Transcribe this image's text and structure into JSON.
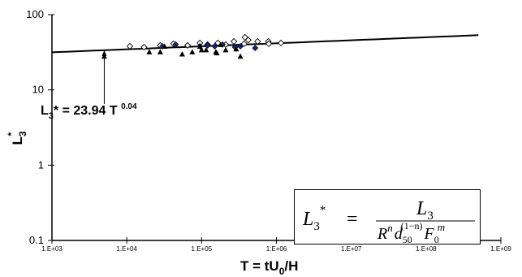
{
  "chart_data": {
    "type": "scatter",
    "title": "",
    "xlabel": {
      "base": "T = tU",
      "sub": "0",
      "tail": "/H"
    },
    "ylabel": {
      "base": "L",
      "sub": "3",
      "sup": "*"
    },
    "xscale": "log",
    "yscale": "log",
    "xlim": [
      1000,
      1000000000
    ],
    "ylim": [
      0.1,
      100
    ],
    "x_tick_labels": [
      "1.E+03",
      "1.E+04",
      "1.E+05",
      "1.E+06",
      "1.E+07",
      "1.E+08",
      "1.E+09"
    ],
    "y_tick_labels": [
      "0.1",
      "1",
      "10",
      "100"
    ],
    "grid": false,
    "legend": "none",
    "series": [
      {
        "marker": "diamond-open",
        "color": "#000000",
        "points": [
          {
            "x": 11000,
            "y": 38
          },
          {
            "x": 17000,
            "y": 37
          },
          {
            "x": 28000,
            "y": 39
          },
          {
            "x": 42000,
            "y": 41
          },
          {
            "x": 65000,
            "y": 39
          },
          {
            "x": 95000,
            "y": 42
          },
          {
            "x": 120000,
            "y": 40
          },
          {
            "x": 165000,
            "y": 42
          },
          {
            "x": 210000,
            "y": 40
          },
          {
            "x": 270000,
            "y": 44
          },
          {
            "x": 370000,
            "y": 41
          },
          {
            "x": 380000,
            "y": 50
          },
          {
            "x": 420000,
            "y": 46
          },
          {
            "x": 560000,
            "y": 44
          },
          {
            "x": 780000,
            "y": 44
          },
          {
            "x": 790000,
            "y": 41
          },
          {
            "x": 1150000,
            "y": 42
          }
        ]
      },
      {
        "marker": "diamond-filled",
        "color": "#1a237e",
        "points": [
          {
            "x": 30000,
            "y": 38
          },
          {
            "x": 45000,
            "y": 40
          },
          {
            "x": 95000,
            "y": 38
          },
          {
            "x": 120000,
            "y": 39
          },
          {
            "x": 150000,
            "y": 38
          },
          {
            "x": 190000,
            "y": 40
          },
          {
            "x": 280000,
            "y": 37
          },
          {
            "x": 330000,
            "y": 38
          },
          {
            "x": 520000,
            "y": 36
          }
        ]
      },
      {
        "marker": "triangle-filled",
        "color": "#000000",
        "points": [
          {
            "x": 5000,
            "y": 28
          },
          {
            "x": 20000,
            "y": 32
          },
          {
            "x": 28000,
            "y": 32
          },
          {
            "x": 32000,
            "y": 38
          },
          {
            "x": 55000,
            "y": 30
          },
          {
            "x": 75000,
            "y": 32
          },
          {
            "x": 95000,
            "y": 38
          },
          {
            "x": 100000,
            "y": 34
          },
          {
            "x": 115000,
            "y": 34
          },
          {
            "x": 155000,
            "y": 32
          },
          {
            "x": 160000,
            "y": 31
          },
          {
            "x": 180000,
            "y": 40
          },
          {
            "x": 210000,
            "y": 34
          },
          {
            "x": 290000,
            "y": 35
          },
          {
            "x": 330000,
            "y": 28
          }
        ]
      }
    ],
    "fit": {
      "coefficient": 23.94,
      "exponent": 0.04,
      "x_range": [
        1000,
        500000000
      ],
      "label": {
        "base": "L",
        "sub": "3",
        "mid": "* = 23.94 T ",
        "sup": "0.04"
      },
      "arrow_target": {
        "x": 5000,
        "y": 33.5
      }
    },
    "formula_box": {
      "lhs_base": "L",
      "lhs_sub": "3",
      "lhs_sup": "*",
      "equals": "=",
      "numerator_base": "L",
      "numerator_sub": "3",
      "denominator_R": "R",
      "denominator_n": "n",
      "denominator_d": "d",
      "denominator_d_sub": "50",
      "denominator_d_sup": "(1−n)",
      "denominator_F": "F",
      "denominator_F_sub": "0",
      "denominator_F_sup": "m"
    }
  }
}
